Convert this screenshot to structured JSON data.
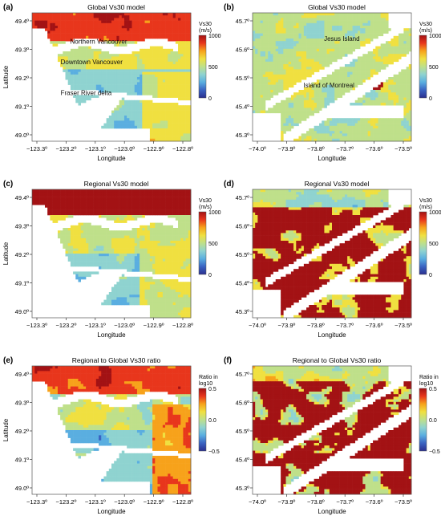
{
  "figure": {
    "panels": [
      {
        "id": "a",
        "label": "(a)",
        "title": "Global Vs30 model",
        "region": "vancouver",
        "variant": "global",
        "x_label": "Longitude",
        "y_label": "Latitude",
        "x_ticks": [
          "−123.3º",
          "−123.2º",
          "−123.1º",
          "−123.0º",
          "−122.9º",
          "−122.8º"
        ],
        "y_ticks": [
          "49.4º",
          "49.3º",
          "49.2º",
          "49.1º",
          "49.0º"
        ],
        "colorbar": {
          "title_lines": [
            "Vs30",
            "(m/s)"
          ],
          "ticks": [
            "1000",
            "500",
            "0"
          ],
          "scale": "vs30"
        },
        "annotations": [
          "Northern Vancouver",
          "Downtown Vancouver",
          "Fraser River delta"
        ]
      },
      {
        "id": "b",
        "label": "(b)",
        "title": "Global Vs30 model",
        "region": "montreal",
        "variant": "global",
        "x_label": "Longitude",
        "y_label": "",
        "x_ticks": [
          "−74.0º",
          "−73.9º",
          "−73.8º",
          "−73.7º",
          "−73.6º",
          "−73.5º"
        ],
        "y_ticks": [
          "45.7º",
          "45.6º",
          "45.5º",
          "45.4º",
          "45.3º"
        ],
        "colorbar": {
          "title_lines": [
            "Vs30",
            "(m/s)"
          ],
          "ticks": [
            "1000",
            "500",
            "0"
          ],
          "scale": "vs30"
        },
        "annotations": [
          "Jesus Island",
          "Island of Montreal"
        ]
      },
      {
        "id": "c",
        "label": "(c)",
        "title": "Regional Vs30 model",
        "region": "vancouver",
        "variant": "regional",
        "x_label": "Longitude",
        "y_label": "Latitude",
        "x_ticks": [
          "−123.3º",
          "−123.2º",
          "−123.1º",
          "−123.0º",
          "−122.9º",
          "−122.8º"
        ],
        "y_ticks": [
          "49.4º",
          "49.3º",
          "49.2º",
          "49.1º",
          "49.0º"
        ],
        "colorbar": {
          "title_lines": [
            "Vs30",
            "(m/s)"
          ],
          "ticks": [
            "1000",
            "500",
            "0"
          ],
          "scale": "vs30"
        },
        "annotations": []
      },
      {
        "id": "d",
        "label": "(d)",
        "title": "Regional Vs30 model",
        "region": "montreal",
        "variant": "regional",
        "x_label": "Longitude",
        "y_label": "",
        "x_ticks": [
          "−74.0º",
          "−73.9º",
          "−73.8º",
          "−73.7º",
          "−73.6º",
          "−73.5º"
        ],
        "y_ticks": [
          "45.7º",
          "45.6º",
          "45.5º",
          "45.4º",
          "45.3º"
        ],
        "colorbar": {
          "title_lines": [
            "Vs30",
            "(m/s)"
          ],
          "ticks": [
            "1000",
            "500",
            "0"
          ],
          "scale": "vs30"
        },
        "annotations": []
      },
      {
        "id": "e",
        "label": "(e)",
        "title": "Regional to Global Vs30 ratio",
        "region": "vancouver",
        "variant": "ratio",
        "x_label": "Longitude",
        "y_label": "Latitude",
        "x_ticks": [
          "−123.3º",
          "−123.2º",
          "−123.1º",
          "−123.0º",
          "−122.9º",
          "−122.8º"
        ],
        "y_ticks": [
          "49.4º",
          "49.3º",
          "49.2º",
          "49.1º",
          "49.0º"
        ],
        "colorbar": {
          "title_lines": [
            "Ratio in",
            "log10"
          ],
          "ticks": [
            "0.5",
            "0.0",
            "−0.5"
          ],
          "scale": "ratio"
        },
        "annotations": []
      },
      {
        "id": "f",
        "label": "(f)",
        "title": "Regional to Global Vs30 ratio",
        "region": "montreal",
        "variant": "ratio",
        "x_label": "Longitude",
        "y_label": "",
        "x_ticks": [
          "−74.0º",
          "−73.9º",
          "−73.8º",
          "−73.7º",
          "−73.6º",
          "−73.5º"
        ],
        "y_ticks": [
          "45.7º",
          "45.6º",
          "45.5º",
          "45.4º",
          "45.3º"
        ],
        "colorbar": {
          "title_lines": [
            "Ratio in",
            "log10"
          ],
          "ticks": [
            "0.5",
            "0.0",
            "−0.5"
          ],
          "scale": "ratio"
        },
        "annotations": []
      }
    ],
    "colormap": [
      "#2a2f8f",
      "#3a63c2",
      "#5aaee0",
      "#8fd3d0",
      "#bfe08a",
      "#f0e040",
      "#f7a21b",
      "#e8361c",
      "#a31214"
    ],
    "water_color": "#ffffff",
    "land_edge_color": "#6a6a6a"
  }
}
